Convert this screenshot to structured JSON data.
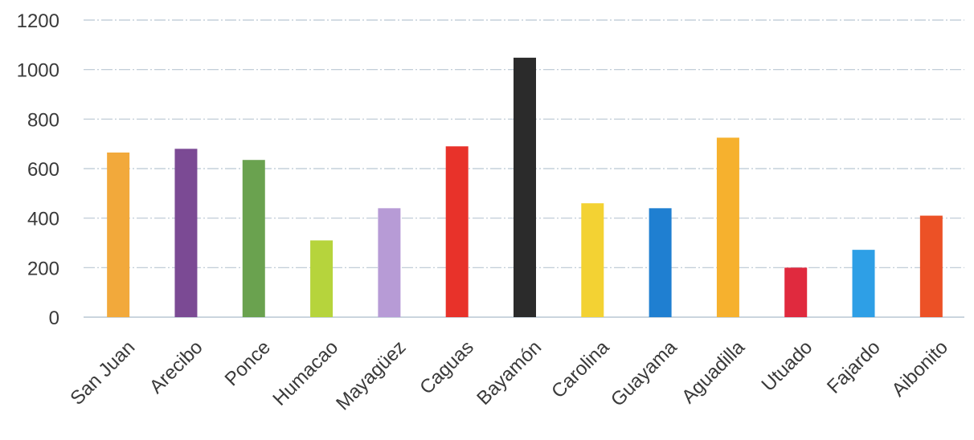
{
  "chart_data": {
    "type": "bar",
    "title": "",
    "xlabel": "",
    "ylabel": "",
    "ylim": [
      0,
      1200
    ],
    "yticks": [
      0,
      200,
      400,
      600,
      800,
      1000,
      1200
    ],
    "ytick_labels": [
      "0",
      "200",
      "400",
      "600",
      "800",
      "1000",
      "1200"
    ],
    "grid": true,
    "legend": "none",
    "categories": [
      "San Juan",
      "Arecibo",
      "Ponce",
      "Humacao",
      "Mayagüez",
      "Caguas",
      "Bayamón",
      "Carolina",
      "Guayama",
      "Aguadilla",
      "Utuado",
      "Fajardo",
      "Aibonito"
    ],
    "values": [
      665,
      680,
      635,
      310,
      440,
      690,
      1048,
      460,
      440,
      725,
      200,
      272,
      410
    ],
    "colors": [
      "#f2a93b",
      "#7b4a94",
      "#6aa24f",
      "#b6d43c",
      "#b79bd6",
      "#e8322a",
      "#2b2b2b",
      "#f3d233",
      "#1f7fd1",
      "#f6b12e",
      "#e02a3e",
      "#2e9fe6",
      "#ec5126"
    ]
  }
}
